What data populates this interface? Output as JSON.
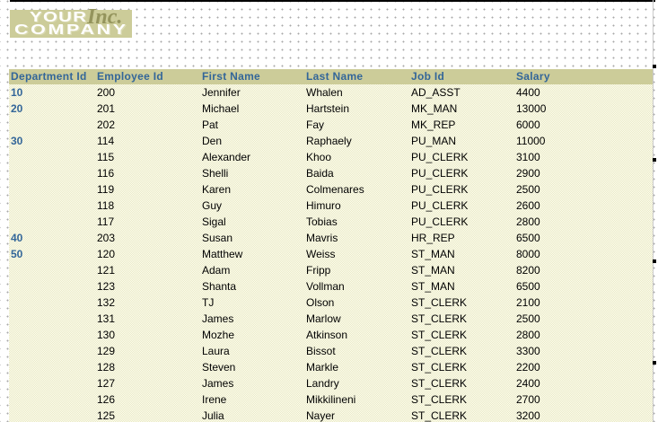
{
  "logo": {
    "line1": "YOUR",
    "line2": "COMPANY",
    "suffix": "Inc.",
    "band_color": "#CCCC99",
    "suffix_color": "#94945C"
  },
  "colors": {
    "header_band": "#CCCC99",
    "header_text": "#336699",
    "row_background_dither": "#E9E9C5",
    "body_text": "#000000"
  },
  "table": {
    "columns": [
      "Department Id",
      "Employee Id",
      "First Name",
      "Last Name",
      "Job Id",
      "Salary"
    ],
    "rows": [
      [
        "10",
        "200",
        "Jennifer",
        "Whalen",
        "AD_ASST",
        "4400"
      ],
      [
        "20",
        "201",
        "Michael",
        "Hartstein",
        "MK_MAN",
        "13000"
      ],
      [
        "",
        "202",
        "Pat",
        "Fay",
        "MK_REP",
        "6000"
      ],
      [
        "30",
        "114",
        "Den",
        "Raphaely",
        "PU_MAN",
        "11000"
      ],
      [
        "",
        "115",
        "Alexander",
        "Khoo",
        "PU_CLERK",
        "3100"
      ],
      [
        "",
        "116",
        "Shelli",
        "Baida",
        "PU_CLERK",
        "2900"
      ],
      [
        "",
        "119",
        "Karen",
        "Colmenares",
        "PU_CLERK",
        "2500"
      ],
      [
        "",
        "118",
        "Guy",
        "Himuro",
        "PU_CLERK",
        "2600"
      ],
      [
        "",
        "117",
        "Sigal",
        "Tobias",
        "PU_CLERK",
        "2800"
      ],
      [
        "40",
        "203",
        "Susan",
        "Mavris",
        "HR_REP",
        "6500"
      ],
      [
        "50",
        "120",
        "Matthew",
        "Weiss",
        "ST_MAN",
        "8000"
      ],
      [
        "",
        "121",
        "Adam",
        "Fripp",
        "ST_MAN",
        "8200"
      ],
      [
        "",
        "123",
        "Shanta",
        "Vollman",
        "ST_MAN",
        "6500"
      ],
      [
        "",
        "132",
        "TJ",
        "Olson",
        "ST_CLERK",
        "2100"
      ],
      [
        "",
        "131",
        "James",
        "Marlow",
        "ST_CLERK",
        "2500"
      ],
      [
        "",
        "130",
        "Mozhe",
        "Atkinson",
        "ST_CLERK",
        "2800"
      ],
      [
        "",
        "129",
        "Laura",
        "Bissot",
        "ST_CLERK",
        "3300"
      ],
      [
        "",
        "128",
        "Steven",
        "Markle",
        "ST_CLERK",
        "2200"
      ],
      [
        "",
        "127",
        "James",
        "Landry",
        "ST_CLERK",
        "2400"
      ],
      [
        "",
        "126",
        "Irene",
        "Mikkilineni",
        "ST_CLERK",
        "2700"
      ],
      [
        "",
        "125",
        "Julia",
        "Nayer",
        "ST_CLERK",
        "3200"
      ]
    ]
  }
}
